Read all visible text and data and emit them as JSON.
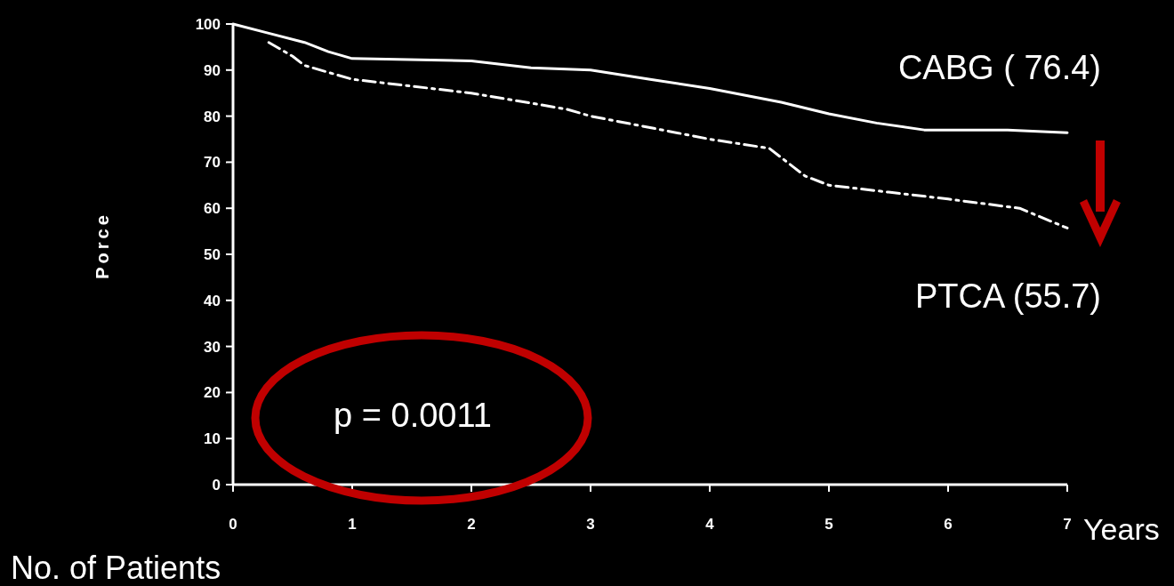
{
  "chart_data": {
    "type": "line",
    "ylabel": "Porce",
    "xlabel": "Years",
    "xlim": [
      0,
      7
    ],
    "ylim": [
      0,
      100
    ],
    "xticks": [
      0,
      1,
      2,
      3,
      4,
      5,
      6,
      7
    ],
    "yticks": [
      0,
      10,
      20,
      30,
      40,
      50,
      60,
      70,
      80,
      90,
      100
    ],
    "grid": false,
    "legend": false,
    "marker": "none",
    "series": [
      {
        "name": "CABG ( 76.4)",
        "color": "#ffffff",
        "line_style": "solid",
        "x": [
          0,
          0.3,
          0.6,
          0.8,
          1.0,
          2.0,
          2.5,
          3.0,
          3.5,
          4.0,
          4.6,
          5.0,
          5.4,
          5.8,
          6.5,
          7.0
        ],
        "values": [
          100,
          98,
          96,
          94,
          92.5,
          92,
          90.5,
          90,
          88,
          86,
          83,
          80.5,
          78.5,
          77,
          77,
          76.4
        ]
      },
      {
        "name": "PTCA (55.7)",
        "color": "#ffffff",
        "line_style": "dashed",
        "x": [
          0.3,
          0.5,
          0.6,
          1.0,
          2.0,
          2.8,
          3.0,
          4.0,
          4.5,
          4.7,
          4.8,
          5.0,
          5.5,
          6.0,
          6.6,
          7.0
        ],
        "values": [
          96,
          93,
          91,
          88,
          85,
          81.5,
          80,
          75,
          73,
          69,
          67,
          65,
          63.5,
          62,
          60,
          55.7
        ]
      }
    ],
    "annotations": [
      "p = 0.0011",
      "No. of Patients"
    ]
  }
}
